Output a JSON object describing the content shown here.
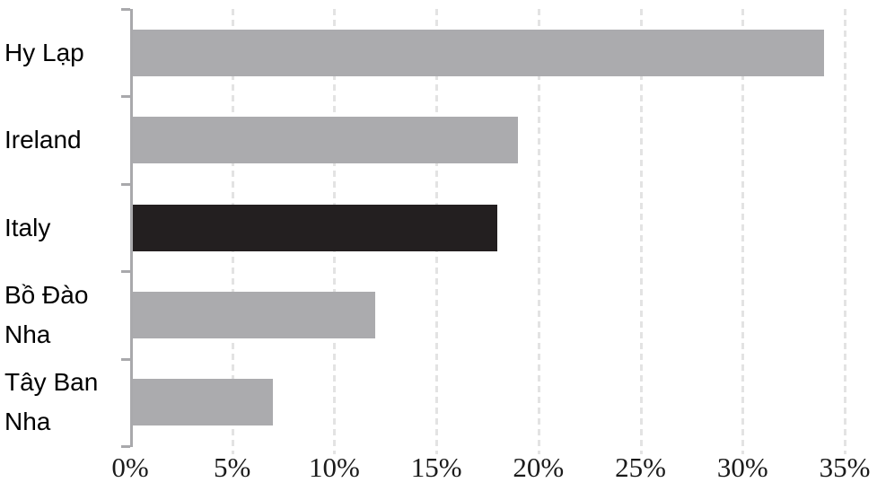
{
  "chart_data": {
    "type": "bar",
    "orientation": "horizontal",
    "title": "",
    "xlabel": "",
    "ylabel": "",
    "categories": [
      "Hy Lạp",
      "Ireland",
      "Italy",
      "Bồ Đào Nha",
      "Tây Ban Nha"
    ],
    "values": [
      34,
      19,
      18,
      12,
      7
    ],
    "value_unit": "%",
    "bar_colors": [
      "#ABABAE",
      "#ABABAE",
      "#231F20",
      "#ABABAE",
      "#ABABAE"
    ],
    "highlighted_category": "Italy",
    "x_ticks": [
      {
        "value": 0,
        "label": "0%"
      },
      {
        "value": 5,
        "label": "5%"
      },
      {
        "value": 10,
        "label": "10%"
      },
      {
        "value": 15,
        "label": "15%"
      },
      {
        "value": 20,
        "label": "20%"
      },
      {
        "value": 25,
        "label": "25%"
      },
      {
        "value": 30,
        "label": "30%"
      },
      {
        "value": 35,
        "label": "35%"
      }
    ],
    "xlim": [
      0,
      35
    ],
    "grid": "vertical-dashed",
    "legend_position": "none",
    "colors": {
      "bar_default": "#ABABAE",
      "bar_highlight": "#231F20",
      "gridline": "#E3E3E3",
      "axis": "#A9A9AC",
      "label_text": "#000000",
      "tick_text": "#1A1A1A",
      "background": "#FFFFFF"
    }
  }
}
